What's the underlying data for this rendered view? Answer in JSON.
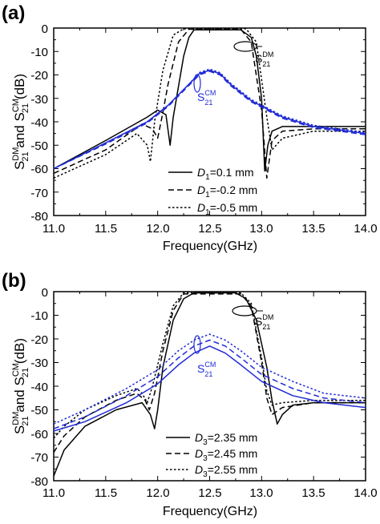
{
  "colors": {
    "black": "#000000",
    "blue": "#1f2ad6"
  },
  "chart_data": [
    {
      "type": "line",
      "panel_label": "(a)",
      "xlabel": "Frequency(GHz)",
      "ylabel_main": "S",
      "ylabel_parts": {
        "dm_sup": "DM",
        "dm_sub": "21",
        "and": " and S",
        "cm_sup": "CM",
        "cm_sub": "21",
        "unit": " (dB)"
      },
      "xlim": [
        11.0,
        14.0
      ],
      "ylim": [
        -80,
        0
      ],
      "xticks": [
        "11.0",
        "11.5",
        "12.0",
        "12.5",
        "13.0",
        "13.5",
        "14.0"
      ],
      "yticks": [
        "0",
        "-10",
        "-20",
        "-30",
        "-40",
        "-50",
        "-60",
        "-70",
        "-80"
      ],
      "legend": [
        {
          "symbol": "D",
          "sub": "1",
          "text": "=0.1 mm",
          "dash": "solid"
        },
        {
          "symbol": "D",
          "sub": "1",
          "text": "=-0.2 mm",
          "dash": "dashed"
        },
        {
          "symbol": "D",
          "sub": "1",
          "text": "=-0.5 mm",
          "dash": "dotted"
        }
      ],
      "annotations": {
        "dm": {
          "base": "S",
          "sup": "DM",
          "sub": "21"
        },
        "cm": {
          "base": "S",
          "sup": "CM",
          "sub": "21"
        }
      },
      "series": [
        {
          "legend_index": 0,
          "kind": "DM",
          "dash": "solid",
          "color": "black",
          "x": [
            11.0,
            11.5,
            11.9,
            12.0,
            12.08,
            12.12,
            12.15,
            12.2,
            12.25,
            12.3,
            12.35,
            12.8,
            12.9,
            12.95,
            13.0,
            13.03,
            13.06,
            13.1,
            13.2,
            13.5,
            14.0
          ],
          "y": [
            -60,
            -48,
            -38,
            -35,
            -37,
            -50,
            -38,
            -25,
            -12,
            -4,
            -0.8,
            -0.8,
            -4,
            -12,
            -30,
            -61,
            -50,
            -44,
            -42,
            -42,
            -42
          ]
        },
        {
          "legend_index": 1,
          "kind": "DM",
          "dash": "dashed",
          "color": "black",
          "x": [
            11.0,
            11.5,
            11.85,
            11.95,
            12.0,
            12.05,
            12.1,
            12.2,
            12.3,
            12.8,
            12.9,
            13.0,
            13.05,
            13.1,
            13.2,
            13.5,
            14.0
          ],
          "y": [
            -62,
            -52,
            -41,
            -43,
            -47,
            -36,
            -24,
            -6,
            -0.5,
            -0.5,
            -6,
            -35,
            -64,
            -48,
            -44,
            -43,
            -43
          ]
        },
        {
          "legend_index": 2,
          "kind": "DM",
          "dash": "dotted",
          "color": "black",
          "x": [
            11.0,
            11.5,
            11.8,
            11.9,
            11.93,
            11.97,
            12.05,
            12.15,
            12.25,
            12.85,
            12.95,
            13.05,
            13.1,
            13.2,
            13.5,
            14.0
          ],
          "y": [
            -64,
            -54,
            -45,
            -50,
            -57,
            -40,
            -18,
            -3,
            -0.3,
            -0.3,
            -6,
            -38,
            -52,
            -47,
            -44,
            -44
          ]
        },
        {
          "legend_index": 0,
          "kind": "CM",
          "dash": "solid",
          "color": "blue",
          "x": [
            11.0,
            11.5,
            11.9,
            12.1,
            12.3,
            12.4,
            12.5,
            12.6,
            12.7,
            12.9,
            13.2,
            13.5,
            14.0
          ],
          "y": [
            -60,
            -49,
            -40,
            -33,
            -24,
            -19.5,
            -18,
            -19.5,
            -24,
            -31,
            -38,
            -42,
            -45
          ]
        },
        {
          "legend_index": 1,
          "kind": "CM",
          "dash": "dashed",
          "color": "blue",
          "x": [
            11.0,
            11.5,
            11.9,
            12.1,
            12.3,
            12.4,
            12.5,
            12.6,
            12.7,
            12.9,
            13.2,
            13.5,
            14.0
          ],
          "y": [
            -60,
            -49.5,
            -40.5,
            -33.5,
            -24.5,
            -20,
            -18.5,
            -20,
            -24.5,
            -31.5,
            -38.5,
            -42.5,
            -45.5
          ]
        },
        {
          "legend_index": 2,
          "kind": "CM",
          "dash": "dotted",
          "color": "blue",
          "x": [
            11.0,
            11.5,
            11.9,
            12.1,
            12.3,
            12.4,
            12.5,
            12.6,
            12.7,
            12.9,
            13.2,
            13.5,
            14.0
          ],
          "y": [
            -60,
            -49,
            -40,
            -33,
            -24,
            -19,
            -17.5,
            -19,
            -23.5,
            -30.5,
            -37.5,
            -41.5,
            -44.5
          ]
        }
      ]
    },
    {
      "type": "line",
      "panel_label": "(b)",
      "xlabel": "Frequency(GHz)",
      "ylabel_main": "S",
      "ylabel_parts": {
        "dm_sup": "DM",
        "dm_sub": "21",
        "and": " and S",
        "cm_sup": "CM",
        "cm_sub": "21",
        "unit": " (dB)"
      },
      "xlim": [
        11.0,
        14.0
      ],
      "ylim": [
        -80,
        0
      ],
      "xticks": [
        "11.0",
        "11.5",
        "12.0",
        "12.5",
        "13.0",
        "13.5",
        "14.0"
      ],
      "yticks": [
        "0",
        "-10",
        "-20",
        "-30",
        "-40",
        "-50",
        "-60",
        "-70",
        "-80"
      ],
      "legend": [
        {
          "symbol": "D",
          "sub": "3",
          "text": "=2.35 mm",
          "dash": "solid"
        },
        {
          "symbol": "D",
          "sub": "3",
          "text": "=2.45 mm",
          "dash": "dashed"
        },
        {
          "symbol": "D",
          "sub": "3",
          "text": "=2.55 mm",
          "dash": "dotted"
        }
      ],
      "annotations": {
        "dm": {
          "base": "S",
          "sup": "DM",
          "sub": "21"
        },
        "cm": {
          "base": "S",
          "sup": "CM",
          "sub": "21"
        }
      },
      "series": [
        {
          "legend_index": 0,
          "kind": "DM",
          "dash": "solid",
          "color": "black",
          "x": [
            11.0,
            11.1,
            11.3,
            11.6,
            11.85,
            11.93,
            11.97,
            12.0,
            12.05,
            12.15,
            12.25,
            12.35,
            12.75,
            12.85,
            12.95,
            13.05,
            13.1,
            13.15,
            13.2,
            13.3,
            13.5,
            14.0
          ],
          "y": [
            -78,
            -67,
            -57,
            -50,
            -47,
            -52,
            -58,
            -50,
            -32,
            -12,
            -3,
            -0.5,
            -0.5,
            -3,
            -12,
            -32,
            -46,
            -56,
            -52,
            -48,
            -47,
            -47
          ]
        },
        {
          "legend_index": 1,
          "kind": "DM",
          "dash": "dashed",
          "color": "black",
          "x": [
            11.0,
            11.1,
            11.3,
            11.6,
            11.8,
            11.88,
            11.92,
            11.97,
            12.05,
            12.15,
            12.25,
            12.8,
            12.9,
            13.0,
            13.05,
            13.1,
            13.2,
            13.5,
            14.0
          ],
          "y": [
            -68,
            -61,
            -53,
            -46,
            -43,
            -46,
            -50,
            -43,
            -25,
            -8,
            -1,
            -1,
            -6,
            -30,
            -45,
            -52,
            -49,
            -47,
            -47
          ]
        },
        {
          "legend_index": 2,
          "kind": "DM",
          "dash": "dotted",
          "color": "black",
          "x": [
            11.0,
            11.1,
            11.3,
            11.6,
            11.8,
            11.85,
            11.9,
            11.95,
            12.05,
            12.15,
            12.25,
            12.8,
            12.9,
            13.0,
            13.05,
            13.1,
            13.2,
            13.5,
            14.0
          ],
          "y": [
            -62,
            -57,
            -50,
            -44,
            -41,
            -43,
            -47,
            -40,
            -22,
            -6,
            -0.5,
            -0.5,
            -5,
            -28,
            -42,
            -48,
            -47,
            -46,
            -46
          ]
        },
        {
          "legend_index": 0,
          "kind": "CM",
          "dash": "solid",
          "color": "blue",
          "x": [
            11.0,
            11.3,
            11.7,
            12.0,
            12.2,
            12.35,
            12.5,
            12.65,
            12.8,
            13.0,
            13.3,
            13.6,
            14.0
          ],
          "y": [
            -59,
            -55,
            -47,
            -39,
            -31,
            -26,
            -23,
            -26,
            -31,
            -38,
            -44,
            -47,
            -49
          ]
        },
        {
          "legend_index": 1,
          "kind": "CM",
          "dash": "dashed",
          "color": "blue",
          "x": [
            11.0,
            11.3,
            11.7,
            12.0,
            12.2,
            12.35,
            12.5,
            12.65,
            12.8,
            13.0,
            13.3,
            13.6,
            14.0
          ],
          "y": [
            -58,
            -53,
            -44,
            -36,
            -28,
            -23,
            -20.5,
            -23,
            -28,
            -35,
            -41,
            -45,
            -47
          ]
        },
        {
          "legend_index": 2,
          "kind": "CM",
          "dash": "dotted",
          "color": "blue",
          "x": [
            11.0,
            11.3,
            11.7,
            12.0,
            12.2,
            12.35,
            12.5,
            12.65,
            12.8,
            13.0,
            13.3,
            13.6,
            14.0
          ],
          "y": [
            -56,
            -50,
            -41,
            -33,
            -25,
            -20.5,
            -18,
            -20.5,
            -25,
            -32,
            -38,
            -43,
            -45
          ]
        }
      ]
    }
  ]
}
